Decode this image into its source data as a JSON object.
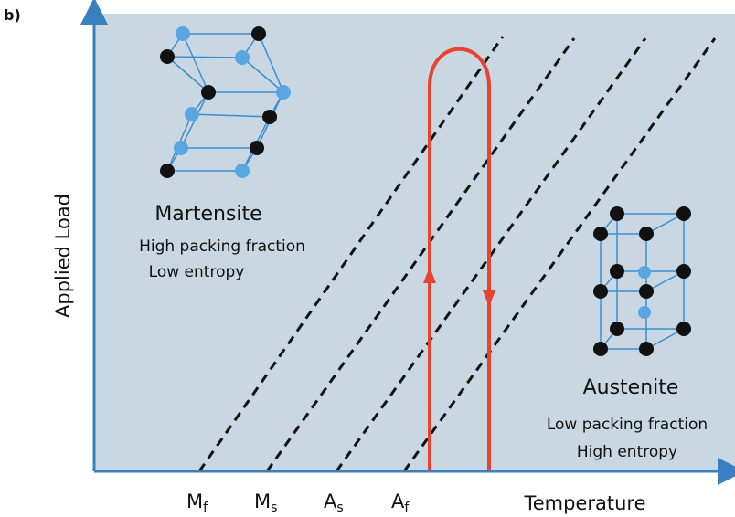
{
  "panel_label": "b)",
  "axes": {
    "y_label": "Applied Load",
    "x_label": "Temperature",
    "x_markers": [
      {
        "main": "M",
        "sub": "f"
      },
      {
        "main": "M",
        "sub": "s"
      },
      {
        "main": "A",
        "sub": "s"
      },
      {
        "main": "A",
        "sub": "f"
      }
    ]
  },
  "martensite": {
    "title": "Martensite",
    "lines": [
      "High packing fraction",
      "Low entropy"
    ]
  },
  "austenite": {
    "title": "Austenite",
    "lines": [
      "Low packing fraction",
      "High entropy"
    ]
  }
}
